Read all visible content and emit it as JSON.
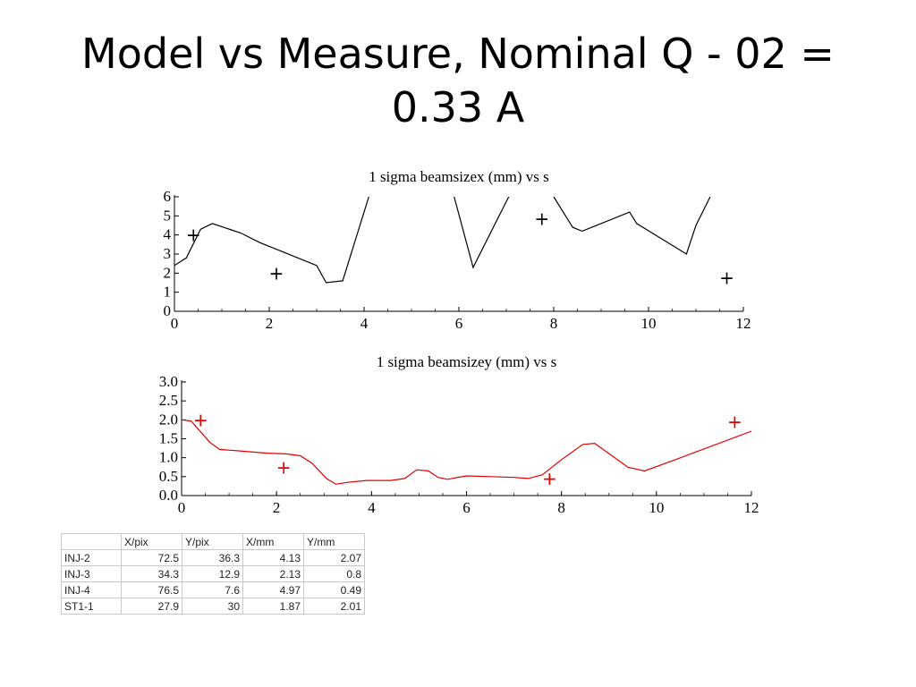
{
  "slide": {
    "title": "Model vs Measure, Nominal Q - 02 = 0.33 A"
  },
  "chart_data": [
    {
      "type": "line",
      "title": "1 sigma beamsizex (mm)  vs s",
      "xlim": [
        0,
        12
      ],
      "ylim": [
        0,
        6
      ],
      "xticks": [
        "0",
        "2",
        "4",
        "6",
        "8",
        "10",
        "12"
      ],
      "yticks": [
        "0",
        "1",
        "2",
        "3",
        "4",
        "5",
        "6"
      ],
      "line_color": "#000000",
      "series": [
        {
          "segments": [
            [
              [
                0,
                2.4
              ],
              [
                0.25,
                2.8
              ],
              [
                0.55,
                4.3
              ],
              [
                0.8,
                4.6
              ],
              [
                1.4,
                4.1
              ],
              [
                1.8,
                3.6
              ],
              [
                2.2,
                3.2
              ],
              [
                3.0,
                2.4
              ],
              [
                3.2,
                1.5
              ],
              [
                3.55,
                1.6
              ],
              [
                4.1,
                6.0
              ]
            ],
            [
              [
                5.9,
                6.0
              ],
              [
                6.3,
                2.3
              ],
              [
                7.05,
                6.0
              ]
            ],
            [
              [
                8.0,
                6.0
              ],
              [
                8.4,
                4.4
              ],
              [
                8.6,
                4.2
              ],
              [
                9.6,
                5.2
              ],
              [
                9.75,
                4.6
              ],
              [
                10.8,
                3.0
              ],
              [
                11.0,
                4.5
              ],
              [
                11.3,
                6.0
              ]
            ]
          ]
        }
      ],
      "markers": {
        "symbol": "+",
        "color": "#000000",
        "points": [
          [
            0.4,
            4.0
          ],
          [
            2.15,
            2.0
          ],
          [
            7.75,
            4.85
          ],
          [
            11.65,
            1.75
          ]
        ]
      }
    },
    {
      "type": "line",
      "title": "1 sigma beamsizey (mm)  vs s",
      "xlim": [
        0,
        12
      ],
      "ylim": [
        0,
        3
      ],
      "xticks": [
        "0",
        "2",
        "4",
        "6",
        "8",
        "10",
        "12"
      ],
      "yticks": [
        "0.0",
        "0.5",
        "1.0",
        "1.5",
        "2.0",
        "2.5",
        "3.0"
      ],
      "line_color": "#e00000",
      "series": [
        {
          "segments": [
            [
              [
                0,
                2.0
              ],
              [
                0.2,
                1.97
              ],
              [
                0.6,
                1.4
              ],
              [
                0.8,
                1.22
              ],
              [
                1.2,
                1.18
              ],
              [
                1.8,
                1.12
              ],
              [
                2.2,
                1.1
              ],
              [
                2.5,
                1.05
              ],
              [
                2.75,
                0.85
              ],
              [
                3.05,
                0.45
              ],
              [
                3.25,
                0.3
              ],
              [
                3.5,
                0.35
              ],
              [
                3.9,
                0.4
              ],
              [
                4.4,
                0.4
              ],
              [
                4.7,
                0.45
              ],
              [
                4.95,
                0.68
              ],
              [
                5.2,
                0.65
              ],
              [
                5.4,
                0.48
              ],
              [
                5.6,
                0.43
              ],
              [
                6.0,
                0.52
              ],
              [
                6.5,
                0.5
              ],
              [
                7.0,
                0.48
              ],
              [
                7.3,
                0.45
              ],
              [
                7.6,
                0.55
              ],
              [
                8.0,
                0.95
              ],
              [
                8.45,
                1.35
              ],
              [
                8.7,
                1.38
              ],
              [
                9.4,
                0.75
              ],
              [
                9.75,
                0.65
              ],
              [
                10.4,
                0.95
              ],
              [
                12.0,
                1.7
              ]
            ]
          ]
        }
      ],
      "markers": {
        "symbol": "+",
        "color": "#e00000",
        "points": [
          [
            0.4,
            2.0
          ],
          [
            2.15,
            0.75
          ],
          [
            7.75,
            0.45
          ],
          [
            11.65,
            1.95
          ]
        ]
      }
    }
  ],
  "table": {
    "headers": [
      "",
      "X/pix",
      "Y/pix",
      "X/mm",
      "Y/mm"
    ],
    "rows": [
      [
        "INJ-2",
        "72.5",
        "36.3",
        "4.13",
        "2.07"
      ],
      [
        "INJ-3",
        "34.3",
        "12.9",
        "2.13",
        "0.8"
      ],
      [
        "INJ-4",
        "76.5",
        "7.6",
        "4.97",
        "0.49"
      ],
      [
        "ST1-1",
        "27.9",
        "30",
        "1.87",
        "2.01"
      ]
    ]
  }
}
